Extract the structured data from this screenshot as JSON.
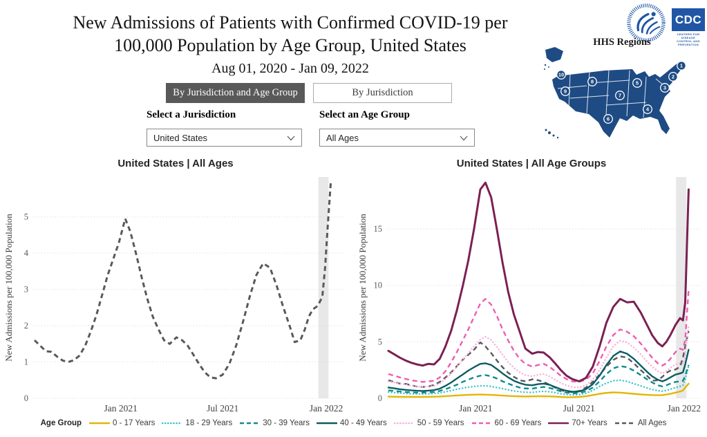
{
  "header": {
    "title_line1": "New Admissions of Patients with Confirmed COVID-19 per",
    "title_line2": "100,000 Population by Age Group, United States",
    "subtitle": "Aug 01, 2020 - Jan 09, 2022"
  },
  "logos": {
    "cdc_text": "CDC",
    "cdc_tagline_line1": "CENTERS FOR DISEASE",
    "cdc_tagline_line2": "CONTROL AND PREVENTION",
    "hhs_regions_label": "HHS Regions",
    "map_color": "#1E4B84",
    "logo_blue": "#2156A5",
    "region_numbers": [
      "1",
      "2",
      "3",
      "4",
      "5",
      "6",
      "7",
      "8",
      "9",
      "10"
    ]
  },
  "tabs": [
    {
      "label": "By Jurisdiction and Age Group",
      "active": true
    },
    {
      "label": "By Jurisdiction",
      "active": false
    }
  ],
  "controls": {
    "jurisdiction_label": "Select a Jurisdiction",
    "jurisdiction_value": "United States",
    "age_group_label": "Select an Age Group",
    "age_group_value": "All Ages"
  },
  "legend": {
    "title": "Age Group",
    "items": [
      {
        "label": "0 - 17 Years",
        "color": "#E3B505",
        "style": "solid"
      },
      {
        "label": "18 - 29 Years",
        "color": "#35C4CC",
        "style": "dotted"
      },
      {
        "label": "30 - 39 Years",
        "color": "#0F8B8F",
        "style": "dashed"
      },
      {
        "label": "40 - 49 Years",
        "color": "#0A5D63",
        "style": "solid"
      },
      {
        "label": "50 - 59 Years",
        "color": "#F7AEDB",
        "style": "dotted"
      },
      {
        "label": "60 - 69 Years",
        "color": "#EE5DB0",
        "style": "dashed"
      },
      {
        "label": "70+ Years",
        "color": "#7B2053",
        "style": "solid"
      },
      {
        "label": "All Ages",
        "color": "#595959",
        "style": "dashed"
      }
    ]
  },
  "chart_data": [
    {
      "id": "left",
      "type": "line",
      "title": "United States | All Ages",
      "ylabel": "New Admissions per 100,000 Population",
      "y_ticks": [
        0,
        1,
        2,
        3,
        4,
        5
      ],
      "y_max": 6.1,
      "x_max_day": 540,
      "grid": "dotted",
      "band": {
        "from_day": 504,
        "to_day": 522
      },
      "x_ticks": [
        {
          "day": 153,
          "label": "Jan 2021"
        },
        {
          "day": 334,
          "label": "Jul 2021"
        },
        {
          "day": 518,
          "label": "Jan 2022"
        }
      ],
      "x_days": [
        0,
        10,
        20,
        30,
        40,
        50,
        60,
        70,
        80,
        90,
        100,
        110,
        120,
        130,
        140,
        150,
        161,
        170,
        180,
        190,
        200,
        210,
        220,
        230,
        240,
        252,
        262,
        272,
        282,
        292,
        302,
        312,
        322,
        334,
        346,
        358,
        370,
        382,
        394,
        406,
        418,
        430,
        442,
        454,
        462,
        472,
        480,
        487,
        494,
        503,
        511,
        516,
        520,
        526
      ],
      "series": [
        {
          "name": "All Ages",
          "color": "#595959",
          "style": "dashed",
          "width": 3,
          "y": [
            1.6,
            1.45,
            1.3,
            1.28,
            1.15,
            1.04,
            1.0,
            1.05,
            1.18,
            1.45,
            1.85,
            2.3,
            2.85,
            3.4,
            3.85,
            4.3,
            4.95,
            4.6,
            4.0,
            3.35,
            2.75,
            2.25,
            1.9,
            1.6,
            1.5,
            1.68,
            1.6,
            1.45,
            1.2,
            0.95,
            0.72,
            0.58,
            0.55,
            0.65,
            0.95,
            1.45,
            2.1,
            2.8,
            3.4,
            3.72,
            3.6,
            3.1,
            2.5,
            1.95,
            1.55,
            1.6,
            1.9,
            2.25,
            2.45,
            2.55,
            2.8,
            3.6,
            4.6,
            5.95
          ]
        }
      ]
    },
    {
      "id": "right",
      "type": "line",
      "title": "United States | All Age Groups",
      "ylabel": "New Admissions per 100,000 Population",
      "y_ticks": [
        0,
        5,
        10,
        15
      ],
      "y_max": 19.6,
      "x_max_day": 540,
      "grid": "dotted",
      "band": {
        "from_day": 504,
        "to_day": 522
      },
      "x_ticks": [
        {
          "day": 153,
          "label": "Jan 2021"
        },
        {
          "day": 334,
          "label": "Jul 2021"
        },
        {
          "day": 518,
          "label": "Jan 2022"
        }
      ],
      "x_days": [
        0,
        10,
        20,
        30,
        40,
        50,
        60,
        70,
        80,
        90,
        100,
        110,
        120,
        130,
        140,
        150,
        161,
        170,
        180,
        190,
        200,
        210,
        220,
        230,
        240,
        252,
        262,
        272,
        282,
        292,
        302,
        312,
        322,
        334,
        346,
        358,
        370,
        382,
        394,
        406,
        418,
        430,
        442,
        454,
        462,
        472,
        480,
        487,
        494,
        503,
        511,
        516,
        520,
        526
      ],
      "series": [
        {
          "name": "0 - 17 Years",
          "color": "#E3B505",
          "style": "solid",
          "width": 2.4,
          "y": [
            0.15,
            0.14,
            0.13,
            0.13,
            0.12,
            0.12,
            0.12,
            0.13,
            0.14,
            0.16,
            0.19,
            0.22,
            0.25,
            0.28,
            0.3,
            0.32,
            0.33,
            0.32,
            0.3,
            0.27,
            0.24,
            0.21,
            0.19,
            0.17,
            0.16,
            0.17,
            0.18,
            0.18,
            0.17,
            0.15,
            0.12,
            0.1,
            0.1,
            0.12,
            0.18,
            0.28,
            0.4,
            0.48,
            0.52,
            0.5,
            0.45,
            0.4,
            0.34,
            0.3,
            0.28,
            0.27,
            0.28,
            0.33,
            0.4,
            0.5,
            0.6,
            0.7,
            0.95,
            1.3
          ]
        },
        {
          "name": "18 - 29 Years",
          "color": "#35C4CC",
          "style": "dotted",
          "width": 2.4,
          "y": [
            0.55,
            0.5,
            0.46,
            0.43,
            0.4,
            0.38,
            0.37,
            0.39,
            0.42,
            0.48,
            0.57,
            0.68,
            0.8,
            0.9,
            0.98,
            1.05,
            1.1,
            1.1,
            1.05,
            0.95,
            0.85,
            0.75,
            0.65,
            0.58,
            0.53,
            0.52,
            0.58,
            0.62,
            0.58,
            0.5,
            0.4,
            0.33,
            0.3,
            0.32,
            0.45,
            0.7,
            1.05,
            1.35,
            1.55,
            1.6,
            1.5,
            1.3,
            1.1,
            0.9,
            0.78,
            0.68,
            0.63,
            0.7,
            0.8,
            0.95,
            1.05,
            1.15,
            1.7,
            2.85
          ]
        },
        {
          "name": "30 - 39 Years",
          "color": "#0F8B8F",
          "style": "dashed",
          "width": 2.4,
          "y": [
            0.7,
            0.65,
            0.6,
            0.56,
            0.52,
            0.5,
            0.5,
            0.52,
            0.56,
            0.65,
            0.8,
            1.0,
            1.2,
            1.45,
            1.65,
            1.85,
            2.0,
            2.05,
            1.95,
            1.75,
            1.5,
            1.3,
            1.1,
            0.95,
            0.87,
            0.85,
            0.95,
            1.0,
            0.92,
            0.78,
            0.62,
            0.5,
            0.44,
            0.46,
            0.62,
            0.95,
            1.5,
            2.15,
            2.65,
            2.85,
            2.75,
            2.45,
            2.05,
            1.65,
            1.4,
            1.15,
            1.05,
            1.15,
            1.3,
            1.45,
            1.5,
            1.55,
            2.0,
            2.95
          ]
        },
        {
          "name": "All Ages",
          "color": "#595959",
          "style": "dashed",
          "width": 2.4,
          "y": [
            1.6,
            1.45,
            1.3,
            1.28,
            1.15,
            1.04,
            1.0,
            1.05,
            1.18,
            1.45,
            1.85,
            2.3,
            2.85,
            3.4,
            3.85,
            4.3,
            4.95,
            4.6,
            4.0,
            3.35,
            2.75,
            2.25,
            1.9,
            1.6,
            1.5,
            1.68,
            1.6,
            1.45,
            1.2,
            0.95,
            0.72,
            0.58,
            0.55,
            0.65,
            0.95,
            1.45,
            2.1,
            2.8,
            3.4,
            3.72,
            3.6,
            3.1,
            2.5,
            1.95,
            1.55,
            1.6,
            1.9,
            2.25,
            2.45,
            2.55,
            2.8,
            3.6,
            4.6,
            5.95
          ]
        },
        {
          "name": "40 - 49 Years",
          "color": "#0A5D63",
          "style": "solid",
          "width": 2.4,
          "y": [
            0.95,
            0.88,
            0.8,
            0.75,
            0.7,
            0.67,
            0.65,
            0.68,
            0.72,
            0.85,
            1.1,
            1.4,
            1.75,
            2.1,
            2.45,
            2.75,
            3.05,
            3.1,
            2.95,
            2.6,
            2.2,
            1.85,
            1.55,
            1.35,
            1.2,
            1.15,
            1.25,
            1.3,
            1.2,
            1.0,
            0.8,
            0.67,
            0.58,
            0.6,
            0.8,
            1.25,
            2.0,
            2.95,
            3.75,
            4.15,
            3.95,
            3.5,
            2.9,
            2.3,
            1.95,
            1.65,
            1.5,
            1.65,
            1.85,
            2.1,
            2.2,
            2.3,
            3.0,
            4.3
          ]
        },
        {
          "name": "50 - 59 Years",
          "color": "#F7AEDB",
          "style": "dotted",
          "width": 2.4,
          "y": [
            1.5,
            1.4,
            1.3,
            1.22,
            1.12,
            1.06,
            1.0,
            1.04,
            1.1,
            1.3,
            1.7,
            2.2,
            2.8,
            3.4,
            4.0,
            4.6,
            5.2,
            5.45,
            5.15,
            4.55,
            3.85,
            3.2,
            2.7,
            2.3,
            2.05,
            1.95,
            2.08,
            2.15,
            1.95,
            1.65,
            1.35,
            1.15,
            1.0,
            0.95,
            1.15,
            1.65,
            2.5,
            3.6,
            4.6,
            5.1,
            4.95,
            4.5,
            3.9,
            3.2,
            2.8,
            2.4,
            2.2,
            2.4,
            2.7,
            3.0,
            3.1,
            3.05,
            3.8,
            6.4
          ]
        },
        {
          "name": "60 - 69 Years",
          "color": "#EE5DB0",
          "style": "dashed",
          "width": 2.4,
          "y": [
            2.15,
            2.0,
            1.85,
            1.72,
            1.6,
            1.52,
            1.45,
            1.5,
            1.55,
            1.85,
            2.4,
            3.2,
            4.1,
            5.1,
            6.1,
            7.2,
            8.4,
            8.8,
            8.3,
            7.3,
            6.1,
            5.1,
            4.2,
            3.5,
            3.05,
            2.8,
            2.95,
            3.05,
            2.8,
            2.4,
            2.0,
            1.7,
            1.5,
            1.45,
            1.65,
            2.2,
            3.3,
            4.6,
            5.6,
            6.1,
            5.9,
            5.5,
            4.85,
            4.1,
            3.6,
            3.1,
            2.9,
            3.1,
            3.5,
            4.1,
            4.4,
            4.3,
            5.2,
            9.6
          ]
        },
        {
          "name": "70+ Years",
          "color": "#7B2053",
          "style": "solid",
          "width": 3,
          "y": [
            4.2,
            3.9,
            3.6,
            3.35,
            3.15,
            3.0,
            2.9,
            3.05,
            3.0,
            3.5,
            4.6,
            6.0,
            7.8,
            9.9,
            12.2,
            15.0,
            18.5,
            19.1,
            17.8,
            15.0,
            12.0,
            9.4,
            7.4,
            5.9,
            4.4,
            3.95,
            4.1,
            4.05,
            3.65,
            3.1,
            2.5,
            2.0,
            1.7,
            1.5,
            1.8,
            2.8,
            4.6,
            6.7,
            8.1,
            8.8,
            8.5,
            8.55,
            7.6,
            6.4,
            5.6,
            4.9,
            4.6,
            5.0,
            5.6,
            6.5,
            7.1,
            6.9,
            8.5,
            18.5
          ]
        }
      ]
    }
  ]
}
